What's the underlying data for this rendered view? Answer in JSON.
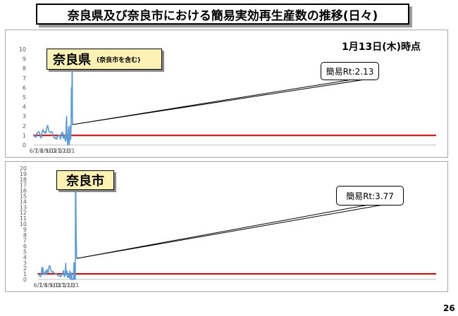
{
  "title": "奈良県及び奈良市における簡易実効再生産数の推移(日々)",
  "page_number": "26",
  "chart_data": [
    {
      "type": "line",
      "title": "奈良県",
      "subtitle": "(奈良市を含む)",
      "as_of": "1月13日(木)時点",
      "callout": "簡易Rt:2.13",
      "x_tick_labels": [
        "6/1",
        "7/1",
        "8/1",
        "9/1",
        "10/1",
        "11/1",
        "12/1",
        "1/1"
      ],
      "y_tick_labels": [
        "0",
        "1",
        "2",
        "3",
        "4",
        "5",
        "6",
        "7",
        "8",
        "9",
        "10"
      ],
      "ylim": [
        0,
        10
      ],
      "reference_line": 1,
      "series": [
        {
          "color": "#5b9bd5",
          "points": [
            [
              "2021-06-01",
              1.0
            ],
            [
              "2021-06-05",
              0.95
            ],
            [
              "2021-06-10",
              0.8
            ],
            [
              "2021-06-14",
              0.85
            ],
            [
              "2021-06-18",
              1.2
            ],
            [
              "2021-06-22",
              1.25
            ],
            [
              "2021-06-26",
              1.3
            ],
            [
              "2021-06-30",
              1.4
            ],
            [
              "2021-07-04",
              1.3
            ],
            [
              "2021-07-08",
              1.0
            ],
            [
              "2021-07-12",
              0.75
            ],
            [
              "2021-07-16",
              0.8
            ],
            [
              "2021-07-20",
              1.4
            ],
            [
              "2021-07-24",
              1.6
            ],
            [
              "2021-07-28",
              1.4
            ],
            [
              "2021-08-01",
              1.3
            ],
            [
              "2021-08-05",
              1.4
            ],
            [
              "2021-08-09",
              1.2
            ],
            [
              "2021-08-13",
              1.5
            ],
            [
              "2021-08-17",
              1.9
            ],
            [
              "2021-08-21",
              2.05
            ],
            [
              "2021-08-25",
              1.7
            ],
            [
              "2021-08-29",
              1.4
            ],
            [
              "2021-09-02",
              1.3
            ],
            [
              "2021-09-06",
              1.3
            ],
            [
              "2021-09-10",
              1.35
            ],
            [
              "2021-09-14",
              1.4
            ],
            [
              "2021-09-18",
              1.3
            ],
            [
              "2021-09-22",
              1.05
            ],
            [
              "2021-09-26",
              0.8
            ],
            [
              "2021-09-30",
              0.7
            ],
            [
              "2021-10-04",
              0.7
            ],
            [
              "2021-10-08",
              0.8
            ],
            [
              "2021-10-12",
              0.6
            ],
            [
              "2021-10-16",
              0.8
            ],
            [
              "2021-10-20",
              0.9
            ],
            [
              "2021-10-24",
              1.0
            ],
            [
              "2021-10-28",
              1.05
            ],
            [
              "2021-11-01",
              0.9
            ],
            [
              "2021-11-04",
              0.6
            ],
            [
              "2021-11-08",
              1.0
            ],
            [
              "2021-11-12",
              1.3
            ],
            [
              "2021-11-14",
              1.1
            ],
            [
              "2021-11-17",
              1.3
            ],
            [
              "2021-11-20",
              0.7
            ],
            [
              "2021-11-24",
              0.8
            ],
            [
              "2021-11-28",
              1.0
            ],
            [
              "2021-12-02",
              0.4
            ],
            [
              "2021-12-05",
              0.5
            ],
            [
              "2021-12-08",
              2.5
            ],
            [
              "2021-12-10",
              3.0
            ],
            [
              "2021-12-12",
              0.8
            ],
            [
              "2021-12-16",
              0.0
            ],
            [
              "2021-12-19",
              0.8
            ],
            [
              "2021-12-21",
              1.9
            ],
            [
              "2021-12-23",
              0.6
            ],
            [
              "2021-12-25",
              0.0
            ],
            [
              "2021-12-28",
              0.6
            ],
            [
              "2021-12-30",
              2.0
            ],
            [
              "2022-01-01",
              0.6
            ],
            [
              "2022-01-02",
              1.2
            ],
            [
              "2022-01-03",
              0.6
            ],
            [
              "2022-01-05",
              2.0
            ],
            [
              "2022-01-07",
              6.0
            ],
            [
              "2022-01-08",
              6.0
            ],
            [
              "2022-01-09",
              3.0
            ],
            [
              "2022-01-10",
              4.8
            ],
            [
              "2022-01-11",
              9.0
            ],
            [
              "2022-01-12",
              8.0
            ],
            [
              "2022-01-13",
              2.13
            ]
          ]
        }
      ]
    },
    {
      "type": "line",
      "title": "奈良市",
      "callout": "簡易Rt:3.77",
      "x_tick_labels": [
        "6/1",
        "7/1",
        "8/1",
        "9/1",
        "10/1",
        "11/1",
        "12/1",
        "1/1"
      ],
      "y_tick_labels": [
        "0",
        "1",
        "2",
        "3",
        "4",
        "5",
        "6",
        "7",
        "8",
        "9",
        "10",
        "11",
        "12",
        "13",
        "14",
        "15",
        "16",
        "17",
        "18",
        "19",
        "20"
      ],
      "ylim": [
        0,
        20
      ],
      "reference_line": 1,
      "series": [
        {
          "color": "#5b9bd5",
          "points": [
            [
              "2021-06-01",
              1.0
            ],
            [
              "2021-06-05",
              0.9
            ],
            [
              "2021-06-10",
              0.6
            ],
            [
              "2021-06-16",
              0.5
            ],
            [
              "2021-06-20",
              0.8
            ],
            [
              "2021-06-24",
              2.2
            ],
            [
              "2021-06-27",
              1.3
            ],
            [
              "2021-06-30",
              2.0
            ],
            [
              "2021-07-03",
              1.0
            ],
            [
              "2021-07-07",
              1.2
            ],
            [
              "2021-07-11",
              0.8
            ],
            [
              "2021-07-15",
              1.5
            ],
            [
              "2021-07-19",
              1.0
            ],
            [
              "2021-07-23",
              1.8
            ],
            [
              "2021-07-27",
              1.3
            ],
            [
              "2021-07-31",
              1.2
            ],
            [
              "2021-08-04",
              2.3
            ],
            [
              "2021-08-08",
              2.5
            ],
            [
              "2021-08-12",
              2.0
            ],
            [
              "2021-08-17",
              1.4
            ],
            [
              "2021-08-22",
              1.3
            ],
            [
              "2021-08-27",
              1.4
            ],
            [
              "2021-09-01",
              1.2
            ],
            [
              "2021-09-06",
              1.1
            ],
            [
              "2021-09-12",
              1.0
            ],
            [
              "2021-09-20",
              0.9
            ],
            [
              "2021-09-28",
              0.6
            ],
            [
              "2021-10-06",
              0.7
            ],
            [
              "2021-10-12",
              0.5
            ],
            [
              "2021-10-18",
              0.8
            ],
            [
              "2021-10-24",
              1.2
            ],
            [
              "2021-10-28",
              1.6
            ],
            [
              "2021-11-01",
              0.6
            ],
            [
              "2021-11-04",
              0.5
            ],
            [
              "2021-11-07",
              1.5
            ],
            [
              "2021-11-10",
              2.9
            ],
            [
              "2021-11-12",
              0.8
            ],
            [
              "2021-11-17",
              1.5
            ],
            [
              "2021-11-22",
              0.3
            ],
            [
              "2021-11-26",
              1.0
            ],
            [
              "2021-12-01",
              0.3
            ],
            [
              "2021-12-04",
              1.5
            ],
            [
              "2021-12-08",
              0.0
            ],
            [
              "2021-12-12",
              1.2
            ],
            [
              "2021-12-16",
              0.0
            ],
            [
              "2021-12-22",
              0.0
            ],
            [
              "2021-12-25",
              0.3
            ],
            [
              "2021-12-28",
              3.0
            ],
            [
              "2021-12-30",
              0.0
            ],
            [
              "2022-01-02",
              0.0
            ],
            [
              "2022-01-04",
              3.0
            ],
            [
              "2022-01-05",
              0.0
            ],
            [
              "2022-01-06",
              19.0
            ],
            [
              "2022-01-08",
              16.0
            ],
            [
              "2022-01-10",
              8.0
            ],
            [
              "2022-01-13",
              3.77
            ]
          ]
        }
      ]
    }
  ]
}
